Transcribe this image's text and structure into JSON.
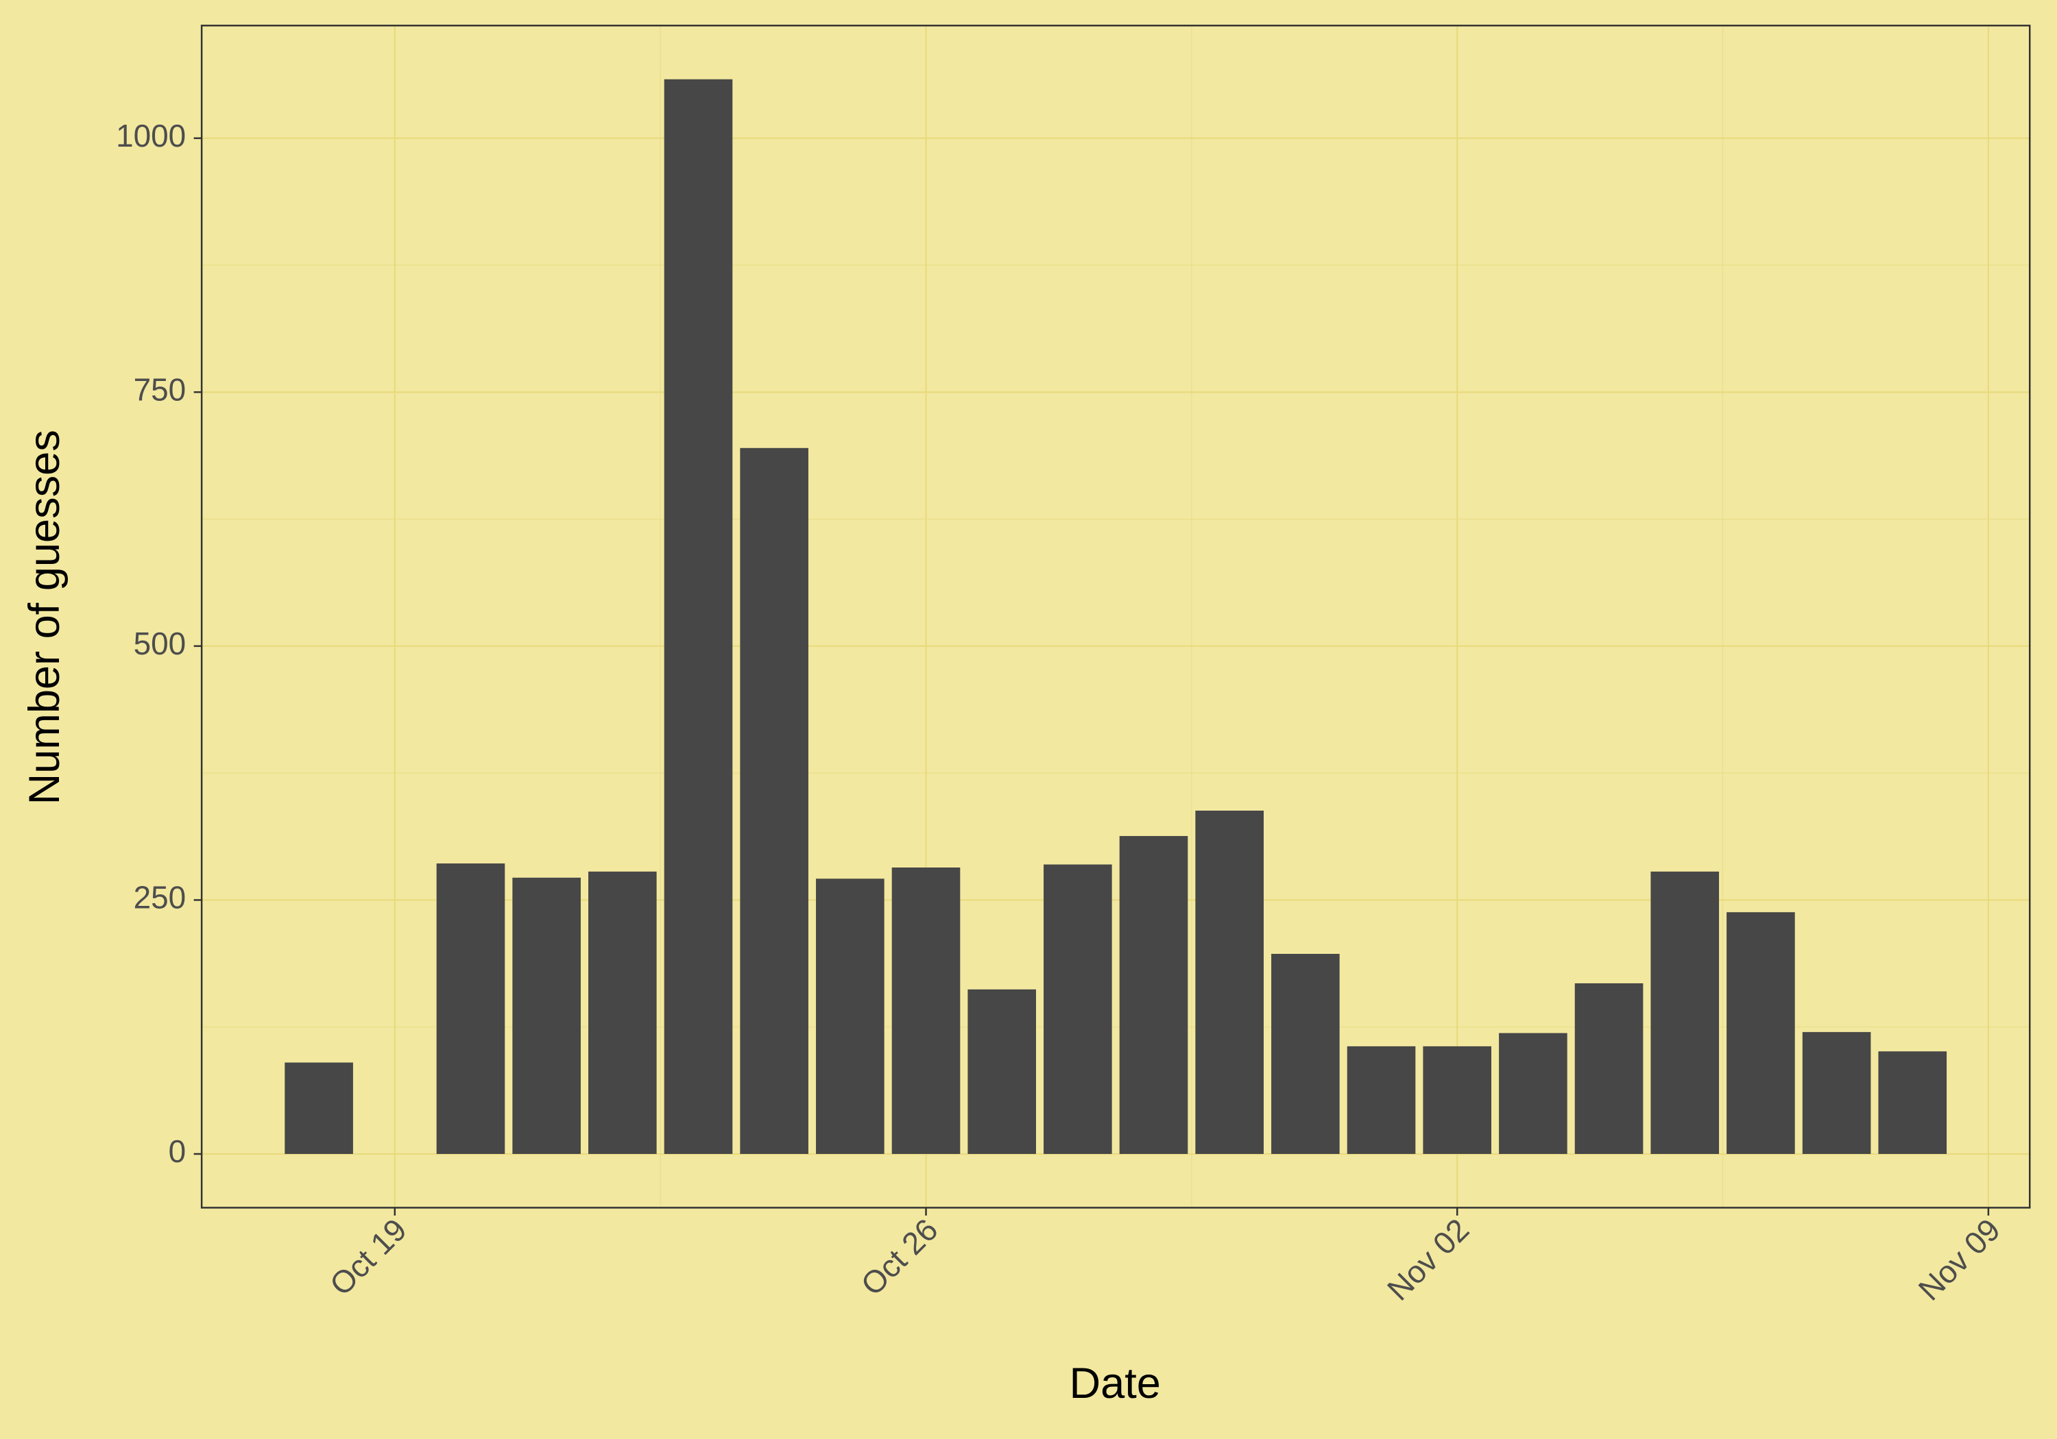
{
  "chart_data": {
    "type": "bar",
    "x_label": "Date",
    "y_label": "Number of guesses",
    "x": [
      "Oct 18",
      "Oct 20",
      "Oct 21",
      "Oct 22",
      "Oct 23",
      "Oct 24",
      "Oct 25",
      "Oct 26",
      "Oct 27",
      "Oct 28",
      "Oct 29",
      "Oct 30",
      "Oct 31",
      "Nov 01",
      "Nov 02",
      "Nov 03",
      "Nov 04",
      "Nov 05",
      "Nov 06",
      "Nov 07",
      "Nov 08"
    ],
    "values": [
      90,
      286,
      272,
      278,
      1058,
      695,
      271,
      282,
      162,
      285,
      313,
      338,
      197,
      106,
      106,
      119,
      168,
      278,
      238,
      120,
      101
    ],
    "color": "#474747",
    "xticks": [
      "Oct 19",
      "Oct 26",
      "Nov 02",
      "Nov 09"
    ],
    "ylim": [
      -52.9,
      1110.9
    ],
    "yticks": [
      0,
      250,
      500,
      750,
      1000
    ],
    "yminor": [
      125,
      375,
      625,
      875
    ],
    "grid": true
  }
}
